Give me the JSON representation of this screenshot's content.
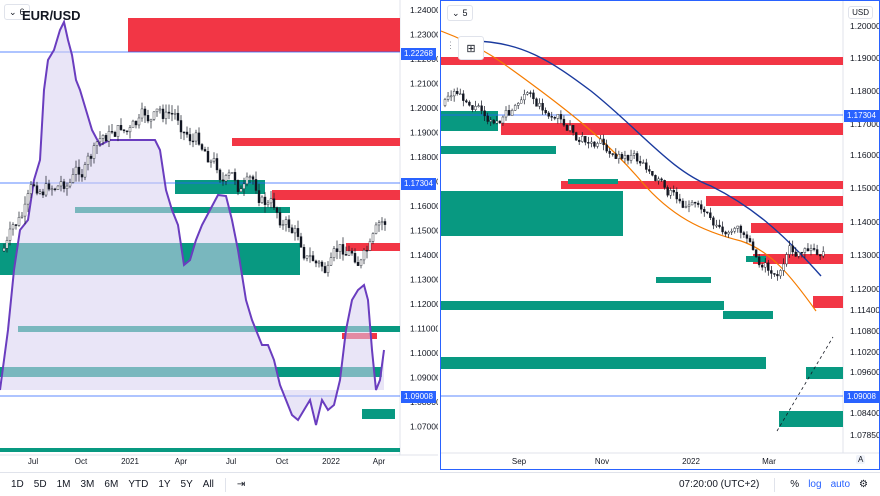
{
  "left_chart": {
    "badge_label": "6",
    "symbol": "EUR/USD",
    "price_axis": [
      "1.24000",
      "1.23000",
      "1.22000",
      "1.21000",
      "1.20000",
      "1.19000",
      "1.18000",
      "1.17000",
      "1.16000",
      "1.15000",
      "1.14000",
      "1.13000",
      "1.12000",
      "1.11000",
      "1.10000",
      "1.09000",
      "1.08000",
      "1.07000"
    ],
    "tags": [
      {
        "text": "1.22268"
      },
      {
        "text": "1.17304"
      },
      {
        "text": "1.09008"
      }
    ],
    "time_axis": [
      "Jul",
      "Oct",
      "2021",
      "Apr",
      "Jul",
      "Oct",
      "2022",
      "Apr"
    ]
  },
  "right_chart": {
    "badge_label": "5",
    "currency": "USD",
    "price_axis": [
      "1.20000",
      "1.19000",
      "1.18000",
      "1.17000",
      "1.16000",
      "1.15000",
      "1.14000",
      "1.13000",
      "1.12000",
      "1.11400",
      "1.10800",
      "1.10200",
      "1.09600",
      "1.08400",
      "1.07850"
    ],
    "tags": [
      {
        "text": "1.17304"
      },
      {
        "text": "1.09008"
      }
    ],
    "time_axis": [
      "Sep",
      "Nov",
      "2022",
      "Mar"
    ],
    "auto_label": "A"
  },
  "toolbar": {
    "ranges": [
      "1D",
      "5D",
      "1M",
      "3M",
      "6M",
      "YTD",
      "1Y",
      "5Y",
      "All"
    ],
    "time": "07:20:00 (UTC+2)",
    "percent": "%",
    "log": "log",
    "auto": "auto",
    "colors": {
      "bull": "#ffffff",
      "bear": "#131722",
      "supply": "#f23645",
      "demand": "#089981",
      "accent": "#2962ff",
      "sma_short": "#f57c00",
      "sma_long": "#1a3a9e",
      "ribbon": "#6a3dbf"
    }
  }
}
